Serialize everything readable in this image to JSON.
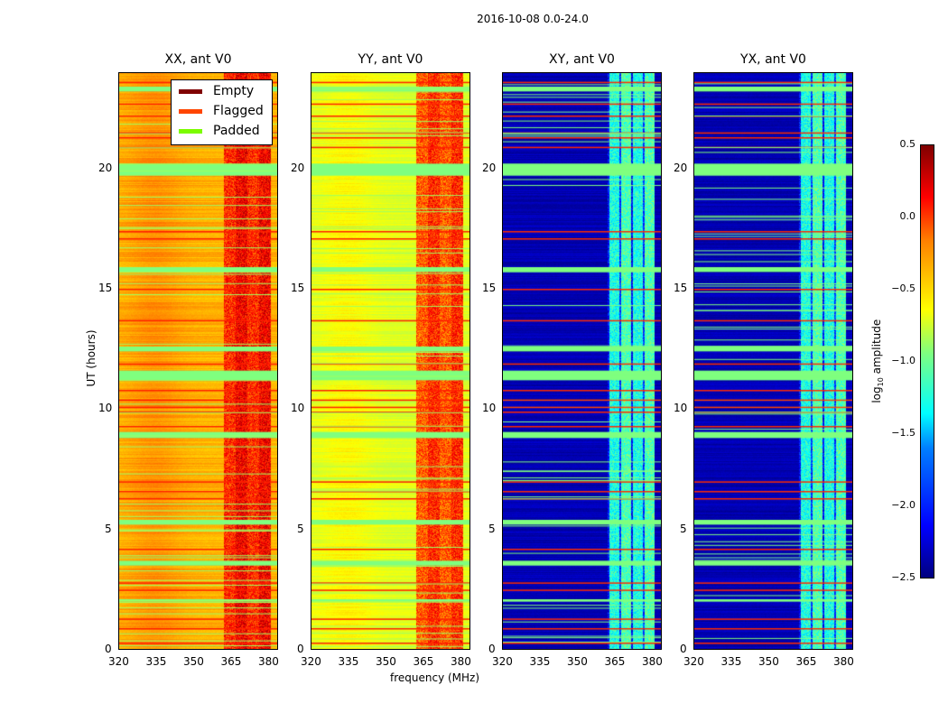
{
  "chart_data": {
    "type": "heatmap",
    "suptitle": "2016-10-08 0.0-24.0",
    "xlabel": "frequency (MHz)",
    "ylabel": "UT (hours)",
    "xlim": [
      320,
      384
    ],
    "ylim": [
      0,
      24
    ],
    "xticks": [
      320,
      335,
      350,
      365,
      380
    ],
    "yticks": [
      0,
      5,
      10,
      15,
      20
    ],
    "panels": [
      {
        "title": "XX, ant V0",
        "base_log_amp": -0.4,
        "rfi_log_amp": 0.05
      },
      {
        "title": "YY, ant V0",
        "base_log_amp": -0.72,
        "rfi_log_amp": -0.1
      },
      {
        "title": "XY, ant V0",
        "base_log_amp": -2.35,
        "rfi_log_amp": -1.25
      },
      {
        "title": "YX, ant V0",
        "base_log_amp": -2.35,
        "rfi_log_amp": -1.25
      }
    ],
    "rfi_band_mhz": [
      362,
      381
    ],
    "padded_intervals_hours": [
      [
        19.7,
        20.2
      ],
      [
        11.2,
        11.6
      ],
      [
        15.7,
        15.9
      ],
      [
        12.4,
        12.6
      ],
      [
        8.8,
        9.05
      ],
      [
        5.2,
        5.4
      ],
      [
        3.5,
        3.7
      ],
      [
        2.0,
        2.1
      ],
      [
        23.2,
        23.4
      ]
    ],
    "flagged_times_hours": [
      0.3,
      0.9,
      1.3,
      2.5,
      2.8,
      4.2,
      6.3,
      6.6,
      7.0,
      9.3,
      9.9,
      10.1,
      10.4,
      10.8,
      11.9,
      13.7,
      15.0,
      17.1,
      17.4,
      20.9,
      21.3,
      21.5,
      22.2,
      22.7,
      23.6
    ],
    "colorbar": {
      "label": "log10 amplitude",
      "range": [
        -2.5,
        0.5
      ],
      "ticks": [
        "0.5",
        "0.0",
        "−0.5",
        "−1.0",
        "−1.5",
        "−2.0",
        "−2.5"
      ],
      "colormap": "jet"
    },
    "legend": {
      "placement": "upper-right of first panel",
      "entries": [
        {
          "label": "Empty",
          "color": "#800000"
        },
        {
          "label": "Flagged",
          "color": "#ff4500"
        },
        {
          "label": "Padded",
          "color": "#7cfc00"
        }
      ]
    }
  }
}
